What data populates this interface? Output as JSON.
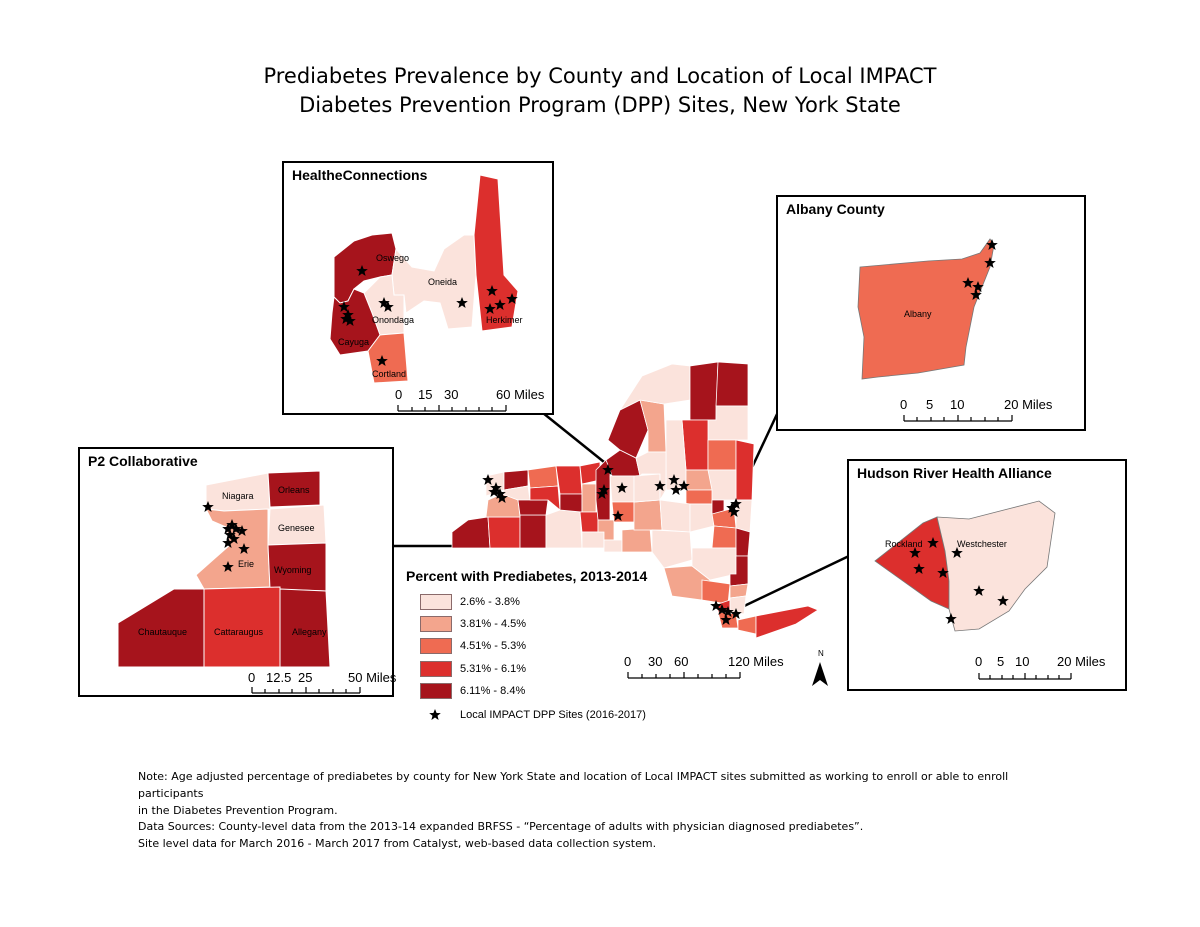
{
  "title": {
    "line1": "Prediabetes Prevalence by County and Location of Local IMPACT",
    "line2": "Diabetes Prevention Program (DPP) Sites, New York State"
  },
  "colors": {
    "class1": "#fbe3dc",
    "class2": "#f3a58d",
    "class3": "#ef6b52",
    "class4": "#dc2f2d",
    "class5": "#a6141c"
  },
  "insets": {
    "healthe": {
      "title": "HealtheConnections",
      "counties": [
        "Oswego",
        "Oneida",
        "Onondaga",
        "Herkimer",
        "Cayuga",
        "Cortland"
      ],
      "scale": [
        "0",
        "15",
        "30",
        "60 Miles"
      ]
    },
    "albany": {
      "title": "Albany County",
      "counties": [
        "Albany"
      ],
      "scale": [
        "0",
        "5",
        "10",
        "20 Miles"
      ]
    },
    "p2": {
      "title": "P2 Collaborative",
      "counties": [
        "Niagara",
        "Orleans",
        "Genesee",
        "Erie",
        "Wyoming",
        "Chautauque",
        "Cattaraugus",
        "Allegany"
      ],
      "scale": [
        "0",
        "12.5",
        "25",
        "50 Miles"
      ]
    },
    "hudson": {
      "title": "Hudson River Health Alliance",
      "counties": [
        "Rockland",
        "Westchester"
      ],
      "scale": [
        "0",
        "5",
        "10",
        "20 Miles"
      ]
    }
  },
  "main_scale": [
    "0",
    "30",
    "60",
    "120 Miles"
  ],
  "north_arrow": "N",
  "legend": {
    "title": "Percent with Prediabetes, 2013-2014",
    "classes": [
      "2.6% - 3.8%",
      "3.81% - 4.5%",
      "4.51% - 5.3%",
      "5.31% - 6.1%",
      "6.11% - 8.4%"
    ],
    "sites_label": "Local IMPACT DPP Sites (2016-2017)"
  },
  "notes": {
    "note1": "Note:  Age adjusted percentage of prediabetes by county for New York State and location of Local IMPACT sites submitted as working to enroll or able to enroll participants",
    "note2": "in the Diabetes Prevention Program.",
    "source1": "Data Sources: County-level data from the 2013-14 expanded BRFSS - “Percentage of adults with physician diagnosed prediabetes”.",
    "source2": "Site level data for March 2016 - March 2017 from Catalyst, web-based data collection system."
  }
}
